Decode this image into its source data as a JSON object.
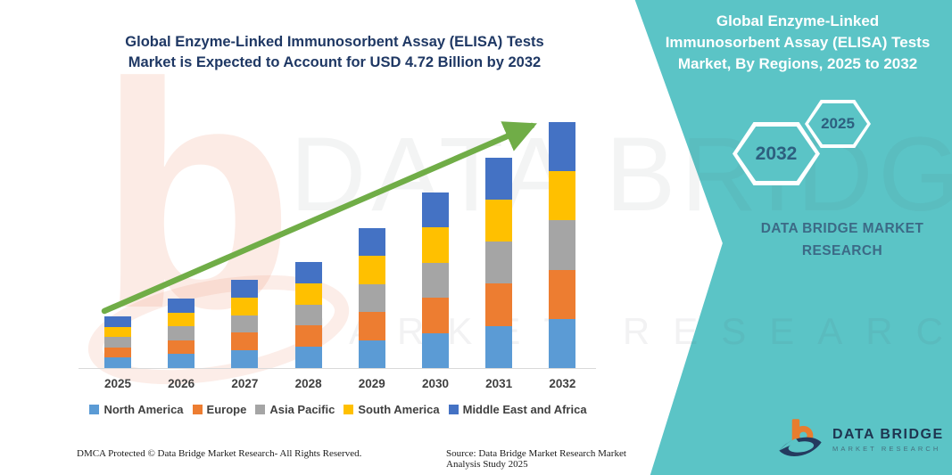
{
  "colors": {
    "teal_panel": "#5BC4C6",
    "title_navy": "#1F3864",
    "arrow_green": "#70AD47",
    "axis_text": "#404040",
    "panel_heading_text": "#FFFFFF",
    "panel_brand_text": "#3C6A86",
    "hexagon_year_text": "#2D5F7F",
    "baseline_gray": "#D9D9D9",
    "logo_orange": "#E87D2E",
    "logo_navy": "#243A5E"
  },
  "main": {
    "title_line1": "Global Enzyme-Linked Immunosorbent Assay (ELISA) Tests",
    "title_line2": "Market is Expected to Account for USD 4.72 Billion by 2032"
  },
  "side_panel": {
    "heading_lines": {
      "0": "Global Enzyme-Linked",
      "1": "Immunosorbent Assay (ELISA) Tests",
      "2": "Market, By Regions, 2025 to 2032"
    },
    "hexagon_large_year": "2032",
    "hexagon_small_year": "2025",
    "brand_text": "DATA BRIDGE MARKET RESEARCH",
    "logo": {
      "name": "DATA BRIDGE",
      "tagline": "MARKET RESEARCH"
    }
  },
  "footer": {
    "left": "DMCA Protected © Data Bridge Market Research-  All Rights Reserved.",
    "right": "Source: Data Bridge Market Research  Market Analysis Study 2025"
  },
  "watermarks": {
    "logo_letter": "b",
    "text_top": "DATA BRIDGE",
    "text_bottom": "MARKET RESEARCH"
  },
  "chart_data": {
    "type": "bar",
    "stacked": true,
    "title": "Global Enzyme-Linked Immunosorbent Assay (ELISA) Tests Market is Expected to Account for USD 4.72 Billion by 2032",
    "unit": "USD Billion",
    "categories": [
      "2025",
      "2026",
      "2027",
      "2028",
      "2029",
      "2030",
      "2031",
      "2032"
    ],
    "series": [
      {
        "name": "North America",
        "color": "#5B9BD5",
        "values": [
          0.198,
          0.266,
          0.338,
          0.406,
          0.538,
          0.674,
          0.808,
          0.944
        ]
      },
      {
        "name": "Europe",
        "color": "#ED7D31",
        "values": [
          0.198,
          0.266,
          0.338,
          0.406,
          0.538,
          0.674,
          0.808,
          0.944
        ]
      },
      {
        "name": "Asia Pacific",
        "color": "#A5A5A5",
        "values": [
          0.198,
          0.266,
          0.338,
          0.406,
          0.538,
          0.674,
          0.808,
          0.944
        ]
      },
      {
        "name": "South America",
        "color": "#FFC000",
        "values": [
          0.198,
          0.266,
          0.338,
          0.406,
          0.538,
          0.674,
          0.808,
          0.944
        ]
      },
      {
        "name": "Middle East and Africa",
        "color": "#4472C4",
        "values": [
          0.198,
          0.266,
          0.338,
          0.406,
          0.538,
          0.674,
          0.808,
          0.944
        ]
      }
    ],
    "year_totals": [
      0.99,
      1.33,
      1.69,
      2.03,
      2.69,
      3.37,
      4.04,
      4.72
    ],
    "final_value_label": "USD 4.72 Billion by 2032",
    "trend_arrow": true,
    "legend_position": "bottom",
    "xlabel": "",
    "ylabel": "",
    "ylim": [
      0,
      5
    ],
    "gridlines": false
  }
}
